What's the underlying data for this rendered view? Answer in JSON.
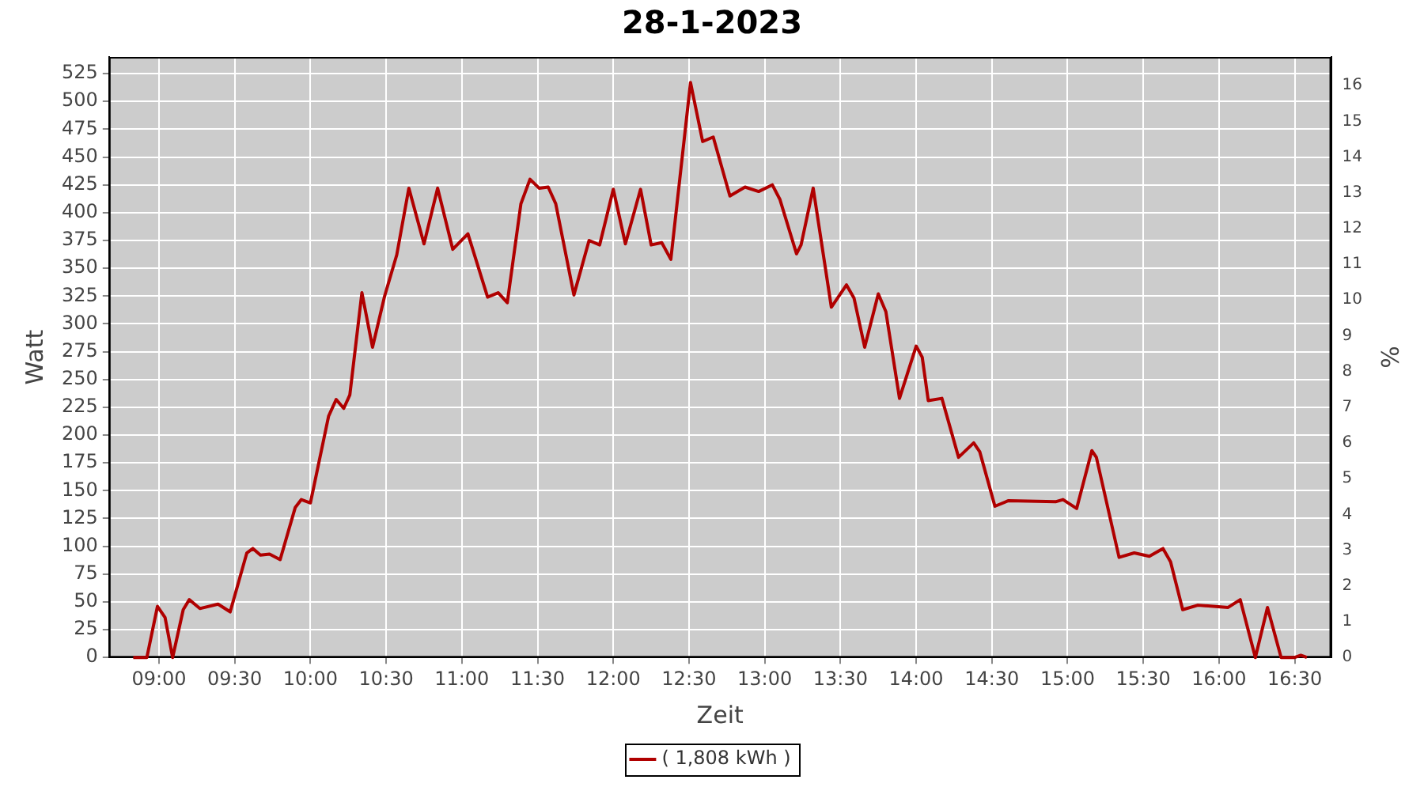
{
  "chart_data": {
    "type": "line",
    "title": "28-1-2023",
    "xlabel": "Zeit",
    "ylabel": "Watt",
    "y2label": "%",
    "x": [
      8.83,
      8.92,
      8.99,
      9.04,
      9.09,
      9.16,
      9.2,
      9.27,
      9.39,
      9.47,
      9.58,
      9.62,
      9.67,
      9.73,
      9.8,
      9.9,
      9.94,
      10.0,
      10.12,
      10.17,
      10.22,
      10.26,
      10.34,
      10.41,
      10.49,
      10.57,
      10.65,
      10.75,
      10.84,
      10.94,
      11.04,
      11.17,
      11.24,
      11.3,
      11.39,
      11.45,
      11.51,
      11.57,
      11.62,
      11.74,
      11.84,
      11.91,
      12.0,
      12.08,
      12.18,
      12.25,
      12.32,
      12.38,
      12.51,
      12.59,
      12.66,
      12.77,
      12.87,
      12.96,
      13.05,
      13.1,
      13.21,
      13.24,
      13.32,
      13.44,
      13.54,
      13.59,
      13.66,
      13.75,
      13.8,
      13.89,
      14.0,
      14.04,
      14.08,
      14.17,
      14.28,
      14.38,
      14.42,
      14.52,
      14.61,
      14.92,
      14.97,
      15.06,
      15.16,
      15.19,
      15.34,
      15.44,
      15.54,
      15.63,
      15.68,
      15.76,
      15.86,
      16.06,
      16.14,
      16.24,
      16.32,
      16.41,
      16.5,
      16.54,
      16.58
    ],
    "series": [
      {
        "name": "( 1,808 kWh )",
        "color": "#b00000",
        "values": [
          0,
          0,
          46,
          36,
          0,
          43,
          52,
          44,
          48,
          41,
          94,
          98,
          92,
          93,
          88,
          135,
          142,
          139,
          217,
          232,
          224,
          236,
          328,
          279,
          325,
          362,
          422,
          372,
          422,
          367,
          381,
          324,
          328,
          319,
          408,
          430,
          422,
          423,
          408,
          326,
          375,
          371,
          421,
          372,
          421,
          371,
          373,
          358,
          517,
          464,
          468,
          415,
          423,
          419,
          425,
          412,
          363,
          371,
          422,
          315,
          335,
          323,
          279,
          327,
          311,
          233,
          280,
          270,
          231,
          233,
          180,
          193,
          185,
          136,
          141,
          140,
          142,
          134,
          186,
          180,
          90,
          94,
          91,
          98,
          86,
          43,
          47,
          45,
          52,
          0,
          45,
          0,
          0,
          2,
          0
        ]
      }
    ],
    "xlim": [
      8.67,
      16.74
    ],
    "xticks": [
      {
        "value": 9,
        "label": "09:00"
      },
      {
        "value": 9.5,
        "label": "09:30"
      },
      {
        "value": 10,
        "label": "10:00"
      },
      {
        "value": 10.5,
        "label": "10:30"
      },
      {
        "value": 11,
        "label": "11:00"
      },
      {
        "value": 11.5,
        "label": "11:30"
      },
      {
        "value": 12,
        "label": "12:00"
      },
      {
        "value": 12.5,
        "label": "12:30"
      },
      {
        "value": 13,
        "label": "13:00"
      },
      {
        "value": 13.5,
        "label": "13:30"
      },
      {
        "value": 14,
        "label": "14:00"
      },
      {
        "value": 14.5,
        "label": "14:30"
      },
      {
        "value": 15,
        "label": "15:00"
      },
      {
        "value": 15.5,
        "label": "15:30"
      },
      {
        "value": 16,
        "label": "16:00"
      },
      {
        "value": 16.5,
        "label": "16:30"
      }
    ],
    "ylim": [
      0,
      540
    ],
    "yticks": [
      0,
      25,
      50,
      75,
      100,
      125,
      150,
      175,
      200,
      225,
      250,
      275,
      300,
      325,
      350,
      375,
      400,
      425,
      450,
      475,
      500,
      525
    ],
    "y2lim": [
      0,
      16.8
    ],
    "y2ticks": [
      0,
      1,
      2,
      3,
      4,
      5,
      6,
      7,
      8,
      9,
      10,
      11,
      12,
      13,
      14,
      15,
      16
    ],
    "grid": true,
    "legend": "bottom",
    "marker": "none",
    "line_style": "solid"
  }
}
